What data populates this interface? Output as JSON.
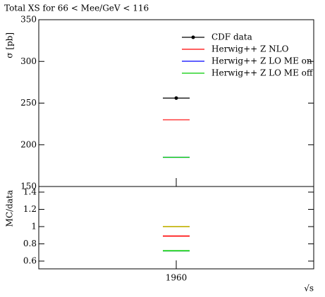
{
  "chart_data": [
    {
      "type": "errorbar",
      "title": "Total XS for 66 < Mee/GeV < 116",
      "ylabel": "σ [pb]",
      "x": [
        1960
      ],
      "xlim": [
        1760,
        2160
      ],
      "xticks": [
        1960
      ],
      "ylim": [
        150,
        350
      ],
      "yticks": [
        150,
        200,
        250,
        300,
        350
      ],
      "legend": "upper right",
      "series": [
        {
          "name": "CDF data",
          "color": "#000000",
          "marker": true,
          "values": [
            256
          ]
        },
        {
          "name": "Herwig++ Z NLO",
          "color": "#ff0000",
          "values": [
            230
          ]
        },
        {
          "name": "Herwig++ Z LO ME on",
          "color": "#0000ff",
          "values": [
            185
          ]
        },
        {
          "name": "Herwig++ Z LO ME off",
          "color": "#00cc00",
          "values": [
            185
          ]
        }
      ]
    },
    {
      "type": "errorbar",
      "ylabel": "MC/data",
      "xlabel": "√s",
      "x": [
        1960
      ],
      "xlim": [
        1760,
        2160
      ],
      "xticks": [
        1960
      ],
      "ylim": [
        0.51,
        1.465
      ],
      "yticks": [
        0.6,
        0.8,
        1,
        1.2,
        1.4
      ],
      "series": [
        {
          "color": "#c0b000",
          "values": [
            1
          ]
        },
        {
          "color": "#ff0000",
          "values": [
            0.89
          ]
        },
        {
          "color": "#0000ff",
          "values": [
            0.72
          ]
        },
        {
          "color": "#00cc00",
          "values": [
            0.72
          ]
        }
      ]
    }
  ]
}
